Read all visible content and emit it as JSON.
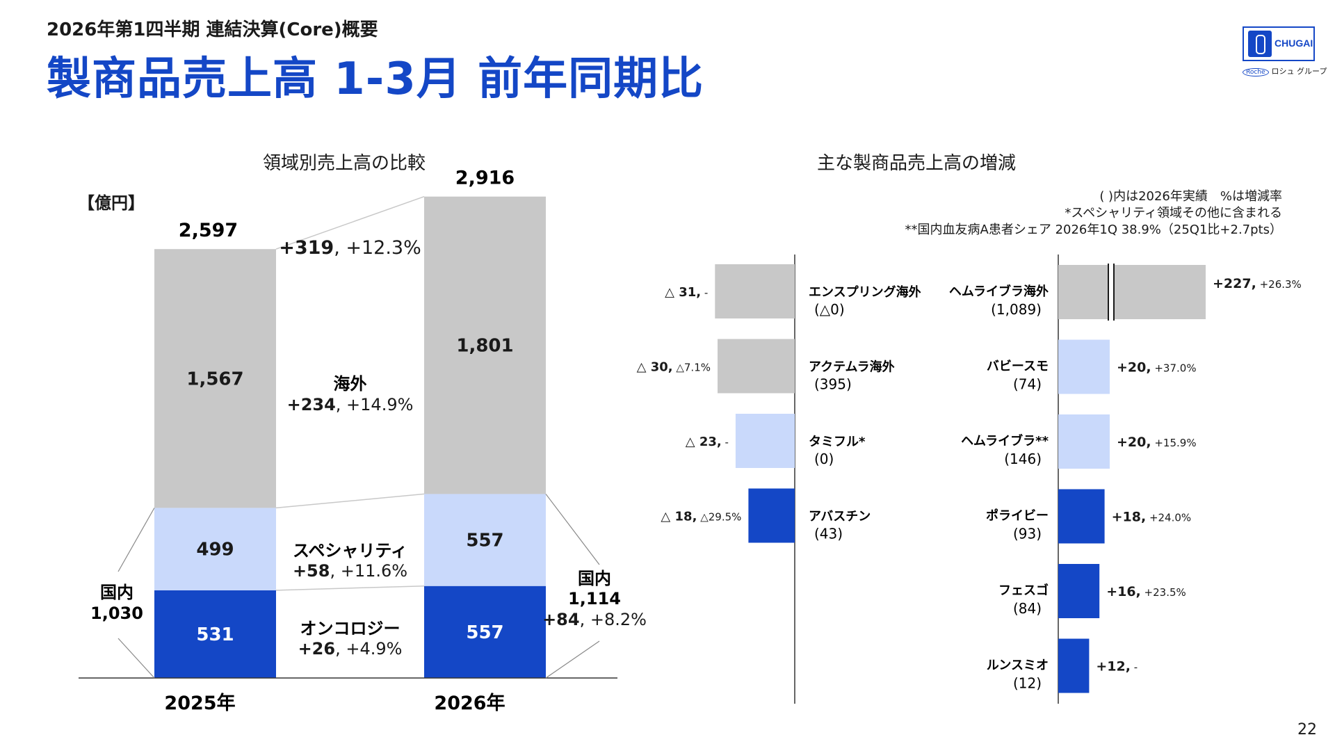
{
  "header": {
    "subtitle": "2026年第1四半期 連結決算(Core)概要",
    "title": "製商品売上高 1-3月 前年同期比",
    "logo_text": "CHUGAI",
    "roche_badge": "Roche",
    "roche_group": "ロシュ グループ"
  },
  "left_section_title": "領域別売上高の比較",
  "unit_label": "【億円】",
  "right_section_title": "主な製商品売上高の増減",
  "notes": [
    "( )内は2026年実績　%は増減率",
    "*スペシャリティ領域その他に含まれる",
    "**国内血友病A患者シェア 2026年1Q 38.9%（25Q1比+2.7pts）"
  ],
  "page_number": "22",
  "colors": {
    "overseas": "#c8c8c8",
    "specialty": "#c9d9fb",
    "oncology": "#1447c6",
    "title": "#1447c6"
  },
  "chart_data": [
    {
      "type": "bar",
      "stacked": true,
      "title": "領域別売上高の比較",
      "unit": "【億円】",
      "categories": [
        "2025年",
        "2026年"
      ],
      "totals": [
        "2,597",
        "2,916"
      ],
      "total_change": {
        "bold": "+319",
        "rest": ", +12.3%"
      },
      "series": [
        {
          "key": "oncology",
          "values": [
            531,
            557
          ],
          "labels": [
            "531",
            "557"
          ],
          "change_name": "オンコロジー",
          "change": {
            "bold": "+26",
            "rest": ", +4.9%"
          }
        },
        {
          "key": "specialty",
          "values": [
            499,
            557
          ],
          "labels": [
            "499",
            "557"
          ],
          "change_name": "スペシャリティ",
          "change": {
            "bold": "+58",
            "rest": ", +11.6%"
          }
        },
        {
          "key": "overseas",
          "values": [
            1567,
            1801
          ],
          "labels": [
            "1,567",
            "1,801"
          ],
          "change_name": "海外",
          "change": {
            "bold": "+234",
            "rest": ", +14.9%"
          }
        }
      ],
      "domestic": {
        "label": "国内",
        "y2025": "1,030",
        "y2026": "1,114",
        "change": {
          "bold": "+84",
          "rest": ", +8.2%"
        }
      }
    },
    {
      "type": "bar",
      "orientation": "horizontal",
      "title": "主な製商品売上高の増減",
      "decreases": [
        {
          "name": "エンスプリング海外",
          "actual": "(△0)",
          "value": -31,
          "label_bold": "△ 31,",
          "label_pct": " -",
          "color": "#c8c8c8"
        },
        {
          "name": "アクテムラ海外",
          "actual": "(395)",
          "value": -30,
          "label_bold": "△ 30,",
          "label_pct": " △7.1%",
          "color": "#c8c8c8"
        },
        {
          "name": "タミフル*",
          "actual": "(0)",
          "value": -23,
          "label_bold": "△ 23,",
          "label_pct": " -",
          "color": "#c9d9fb"
        },
        {
          "name": "アバスチン",
          "actual": "(43)",
          "value": -18,
          "label_bold": "△ 18,",
          "label_pct": " △29.5%",
          "color": "#1447c6"
        }
      ],
      "increases": [
        {
          "name": "ヘムライブラ海外",
          "actual": "(1,089)",
          "value": 227,
          "label_bold": "+227,",
          "label_pct": " +26.3%",
          "color": "#c8c8c8",
          "axis_break": true
        },
        {
          "name": "バビースモ",
          "actual": "(74)",
          "value": 20,
          "label_bold": "+20,",
          "label_pct": " +37.0%",
          "color": "#c9d9fb"
        },
        {
          "name": "ヘムライブラ**",
          "actual": "(146)",
          "value": 20,
          "label_bold": "+20,",
          "label_pct": " +15.9%",
          "color": "#c9d9fb"
        },
        {
          "name": "ポライビー",
          "actual": "(93)",
          "value": 18,
          "label_bold": "+18,",
          "label_pct": " +24.0%",
          "color": "#1447c6"
        },
        {
          "name": "フェスゴ",
          "actual": "(84)",
          "value": 16,
          "label_bold": "+16,",
          "label_pct": " +23.5%",
          "color": "#1447c6"
        },
        {
          "name": "ルンスミオ",
          "actual": "(12)",
          "value": 12,
          "label_bold": "+12,",
          "label_pct": " -",
          "color": "#1447c6"
        }
      ]
    }
  ]
}
